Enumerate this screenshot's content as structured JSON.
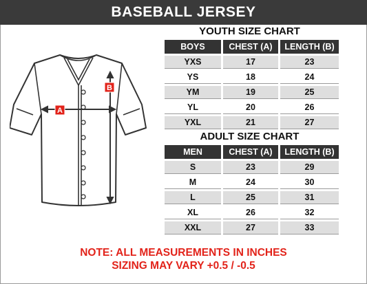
{
  "title": "BASEBALL JERSEY",
  "youth": {
    "title": "YOUTH SIZE CHART",
    "headers": [
      "BOYS",
      "CHEST (A)",
      "LENGTH (B)"
    ],
    "rows": [
      [
        "YXS",
        "17",
        "23"
      ],
      [
        "YS",
        "18",
        "24"
      ],
      [
        "YM",
        "19",
        "25"
      ],
      [
        "YL",
        "20",
        "26"
      ],
      [
        "YXL",
        "21",
        "27"
      ]
    ]
  },
  "adult": {
    "title": "ADULT SIZE CHART",
    "headers": [
      "MEN",
      "CHEST (A)",
      "LENGTH (B)"
    ],
    "rows": [
      [
        "S",
        "23",
        "29"
      ],
      [
        "M",
        "24",
        "30"
      ],
      [
        "L",
        "25",
        "31"
      ],
      [
        "XL",
        "26",
        "32"
      ],
      [
        "XXL",
        "27",
        "33"
      ]
    ]
  },
  "diagram": {
    "label_a": "A",
    "label_b": "B",
    "accent_color": "#e2231a"
  },
  "note": {
    "line1": "NOTE: ALL MEASUREMENTS IN INCHES",
    "line2": "SIZING MAY VARY +0.5 / -0.5"
  }
}
